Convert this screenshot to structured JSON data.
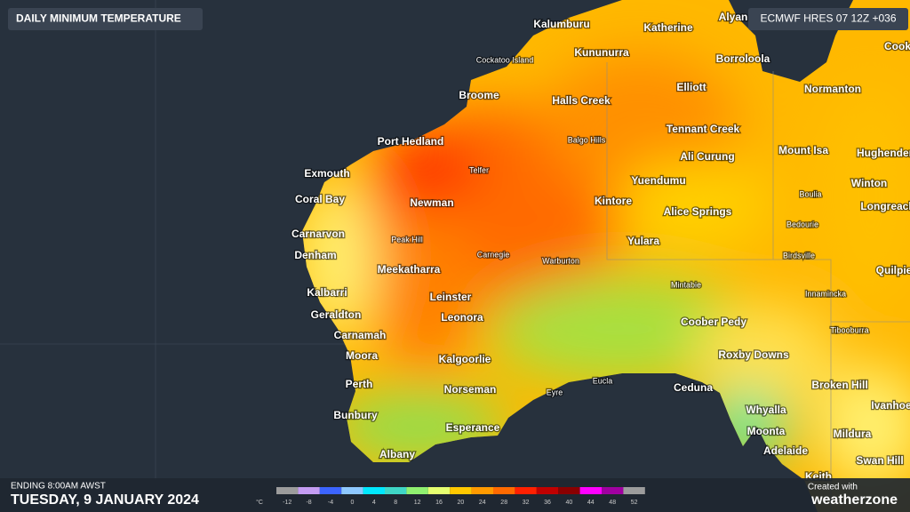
{
  "header": {
    "title": "DAILY MINIMUM TEMPERATURE",
    "model": "ECMWF HRES 07 12Z +036"
  },
  "places": [
    "Kalumburu",
    "Katherine",
    "Alyan",
    "Cockatoo Island",
    "Kununurra",
    "Borroloola",
    "Cook",
    "Broome",
    "Halls Creek",
    "Elliott",
    "Normanton",
    "Tennant Creek",
    "Balgo Hills",
    "Port Hedland",
    "Mount Isa",
    "Hughenden",
    "Ali Curung",
    "Telfer",
    "Exmouth",
    "Yuendumu",
    "Winton",
    "Coral Bay",
    "Newman",
    "Kintore",
    "Boulia",
    "Alice Springs",
    "Longreach",
    "Bedourie",
    "Carnarvon",
    "Peak Hill",
    "Yulara",
    "Denham",
    "Carnegie",
    "Birdsville",
    "Warburton",
    "Meekatharra",
    "Quilpie",
    "Mintabie",
    "Kalbarri",
    "Leinster",
    "Innamincka",
    "Geraldton",
    "Leonora",
    "Coober Pedy",
    "Carnamah",
    "Tibooburra",
    "Moora",
    "Roxby Downs",
    "Kalgoorlie",
    "Perth",
    "Norseman",
    "Eyre",
    "Eucla",
    "Ceduna",
    "Broken Hill",
    "Ivanhoe",
    "Bunbury",
    "Whyalla",
    "Esperance",
    "Moonta",
    "Mildura",
    "Adelaide",
    "Swan Hill",
    "Albany",
    "Keith"
  ],
  "footer": {
    "period": "ENDING 8:00AM AWST",
    "date": "TUESDAY, 9 JANUARY 2024",
    "credit": "Created with",
    "brand": "weatherzone"
  },
  "legend": {
    "unit": "°C",
    "items": [
      {
        "value": -12,
        "color": "#9c9c9c"
      },
      {
        "value": -8,
        "color": "#c49cf2"
      },
      {
        "value": -4,
        "color": "#3c64ff"
      },
      {
        "value": 0,
        "color": "#8ec8ff"
      },
      {
        "value": 4,
        "color": "#00e8ff"
      },
      {
        "value": 8,
        "color": "#3fd6c6"
      },
      {
        "value": 12,
        "color": "#90f070"
      },
      {
        "value": 16,
        "color": "#e6ff70"
      },
      {
        "value": 20,
        "color": "#ffc800"
      },
      {
        "value": 24,
        "color": "#ff9a00"
      },
      {
        "value": 28,
        "color": "#ff6a00"
      },
      {
        "value": 32,
        "color": "#ff2000"
      },
      {
        "value": 36,
        "color": "#c00000"
      },
      {
        "value": 40,
        "color": "#8a0000"
      },
      {
        "value": 44,
        "color": "#ff00ff"
      },
      {
        "value": 48,
        "color": "#a000a0"
      },
      {
        "value": 52,
        "color": "#9c9c9c"
      }
    ]
  }
}
